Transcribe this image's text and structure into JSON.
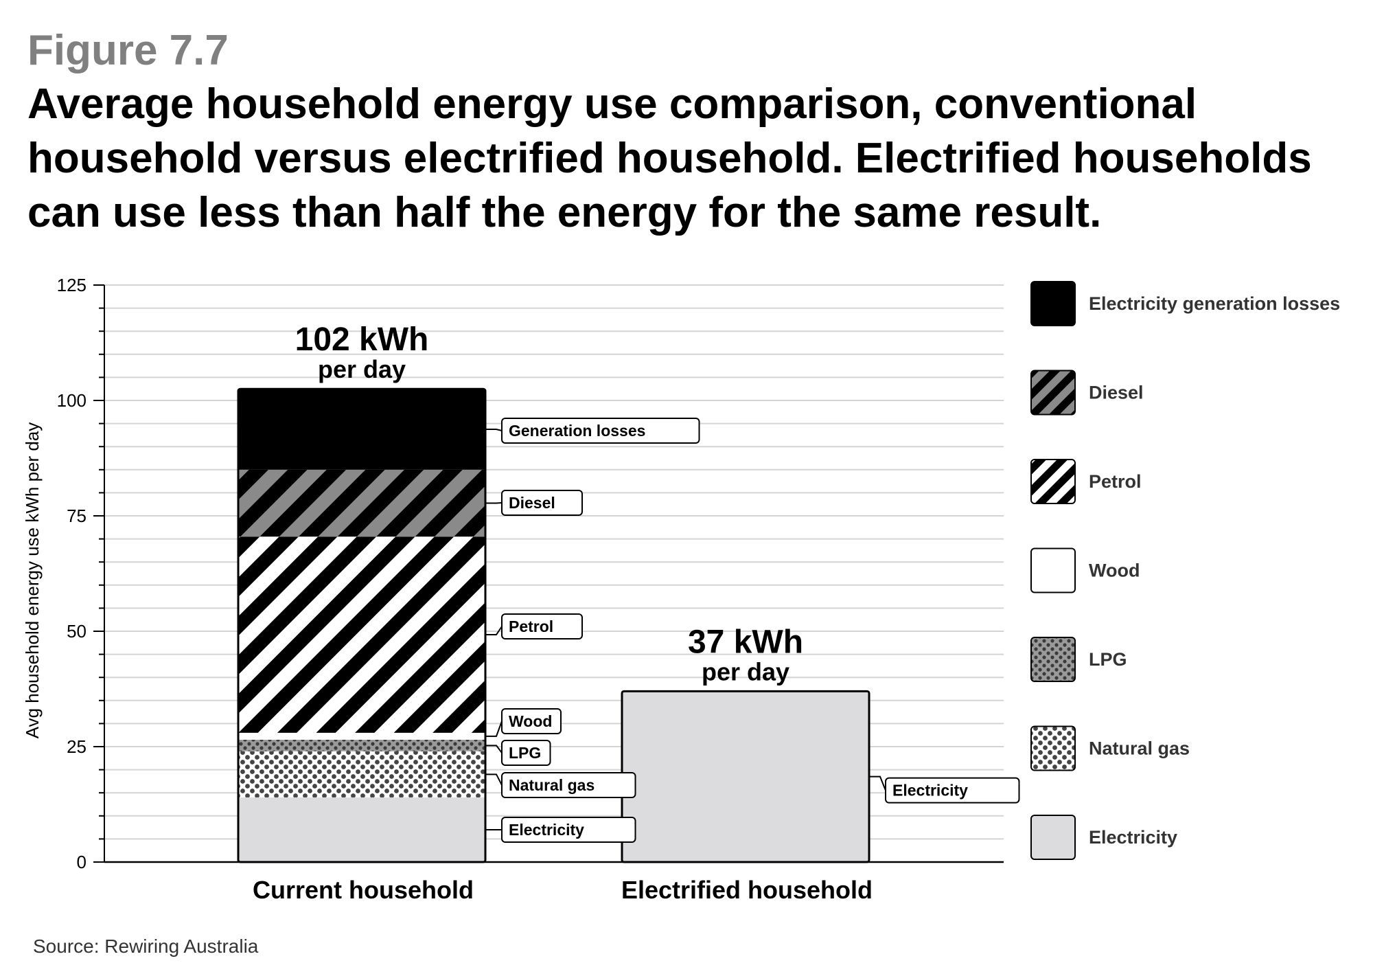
{
  "figure_label": "Figure 7.7",
  "title_lines": [
    "Average household energy use comparison, conventional",
    "household versus electrified household. Electrified households",
    "can use less than half the energy for the same result."
  ],
  "source": "Source: Rewiring Australia",
  "chart_data": {
    "type": "bar",
    "stacked": true,
    "categories": [
      "Current household",
      "Electrified household"
    ],
    "ylabel": "Avg household energy use kWh per day",
    "ylim": [
      0,
      125
    ],
    "yticks": [
      0,
      25,
      50,
      75,
      100,
      125
    ],
    "grid": true,
    "legend_position": "right",
    "totals": [
      {
        "value": "102 kWh",
        "unit": "per day"
      },
      {
        "value": "37 kWh",
        "unit": "per day"
      }
    ],
    "series": [
      {
        "name": "Electricity",
        "label": "Electricity",
        "pattern": "solid-light-grey",
        "values": [
          14,
          37
        ]
      },
      {
        "name": "Natural gas",
        "label": "Natural gas",
        "pattern": "dark-dots-on-white",
        "values": [
          10,
          0
        ]
      },
      {
        "name": "LPG",
        "label": "LPG",
        "pattern": "dots-on-grey",
        "values": [
          2.5,
          0
        ]
      },
      {
        "name": "Wood",
        "label": "Wood",
        "pattern": "solid-white",
        "values": [
          1.5,
          0
        ]
      },
      {
        "name": "Petrol",
        "label": "Petrol",
        "pattern": "black-white-diagonal-stripes",
        "values": [
          42.5,
          0
        ]
      },
      {
        "name": "Diesel",
        "label": "Diesel",
        "pattern": "grey-black-diagonal-stripes",
        "values": [
          14.5,
          0
        ]
      },
      {
        "name": "Electricity generation losses",
        "label": "Generation losses",
        "pattern": "solid-black",
        "values": [
          17.5,
          0
        ]
      }
    ],
    "legend_order": [
      "Electricity generation losses",
      "Diesel",
      "Petrol",
      "Wood",
      "LPG",
      "Natural gas",
      "Electricity"
    ],
    "colors": {
      "black": "#000000",
      "light_grey": "#dcdcde",
      "mid_grey": "#8a8a8a",
      "grid": "#d4d4d4",
      "white": "#ffffff"
    }
  }
}
